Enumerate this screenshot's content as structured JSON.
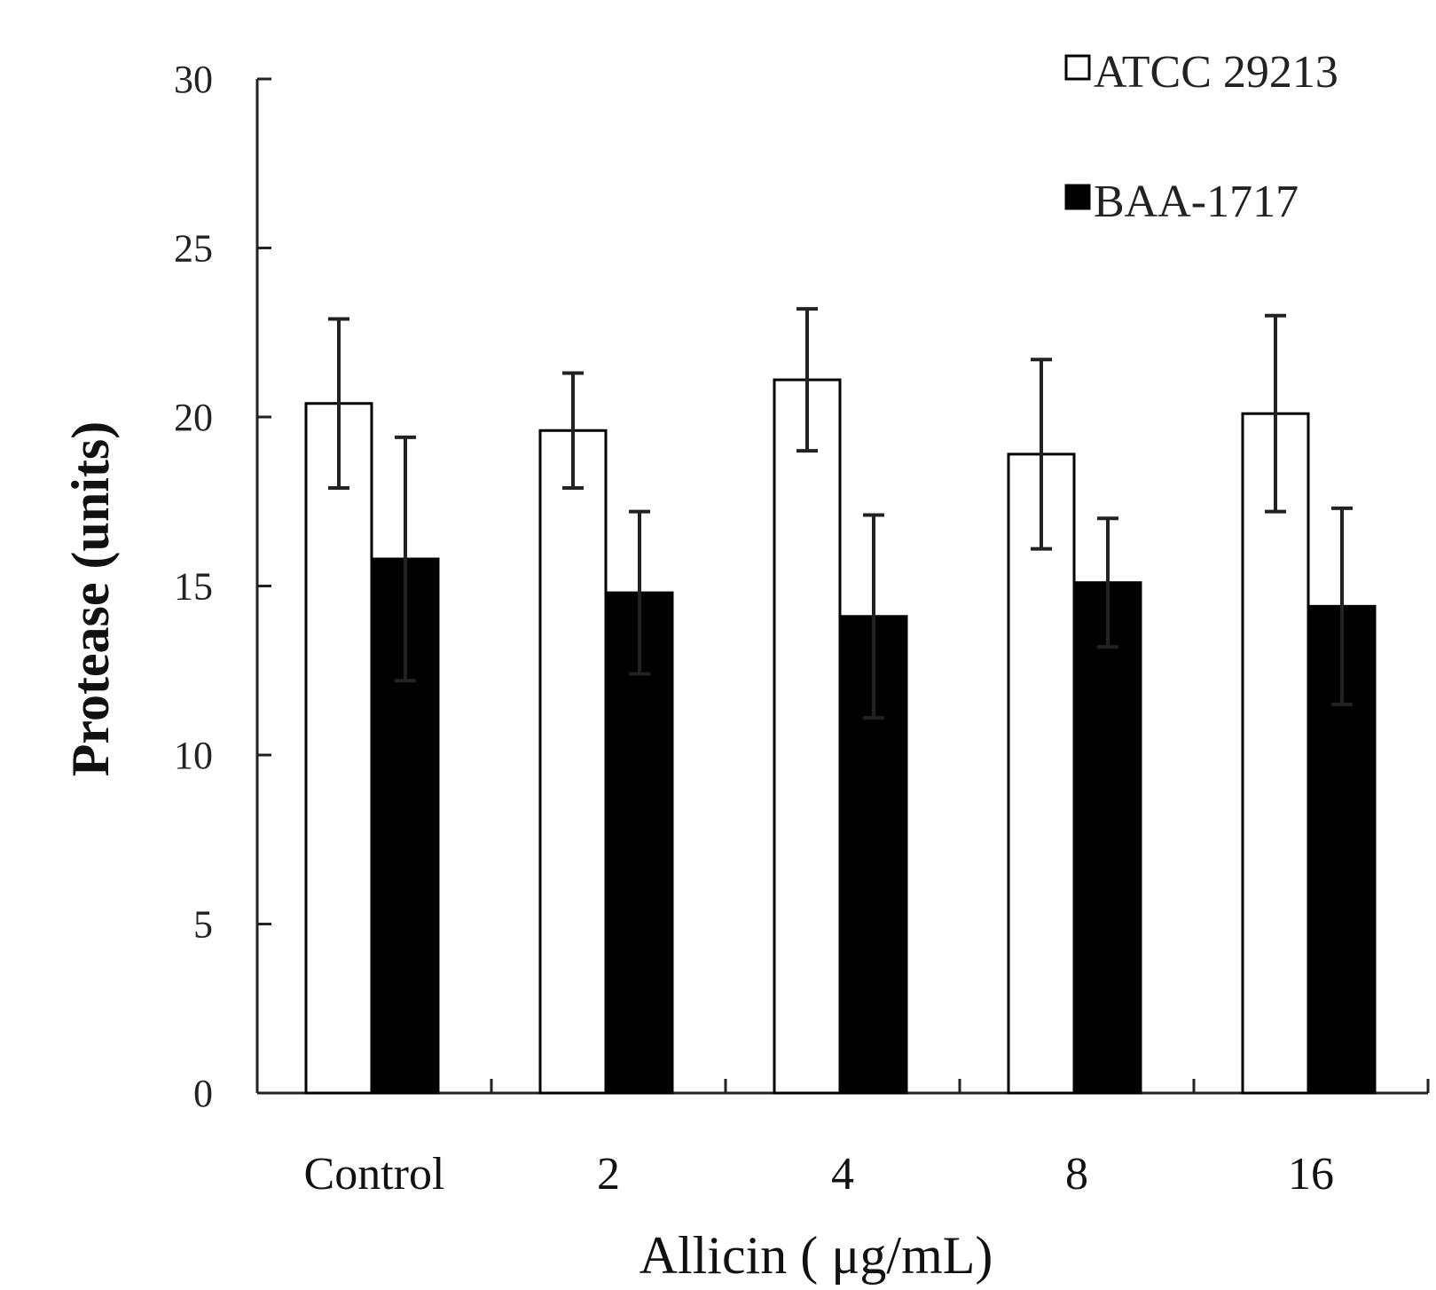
{
  "chart_data": {
    "type": "bar",
    "categories": [
      "Control",
      "2",
      "4",
      "8",
      "16"
    ],
    "series": [
      {
        "name": "ATCC 29213",
        "fill": "#ffffff",
        "stroke": "#000000",
        "values": [
          20.4,
          19.6,
          21.1,
          18.9,
          20.1
        ],
        "errors": [
          2.5,
          1.7,
          2.1,
          2.8,
          2.9
        ]
      },
      {
        "name": "BAA-1717",
        "fill": "#000000",
        "stroke": "#000000",
        "values": [
          15.8,
          14.8,
          14.1,
          15.1,
          14.4
        ],
        "errors": [
          3.6,
          2.4,
          3.0,
          1.9,
          2.9
        ]
      }
    ],
    "xlabel": "Allicin ( μg/mL)",
    "ylabel": "Protease (units)",
    "ylim": [
      0,
      30
    ],
    "yticks": [
      0,
      5,
      10,
      15,
      20,
      25,
      30
    ],
    "grid": false,
    "legend": "top-right"
  }
}
